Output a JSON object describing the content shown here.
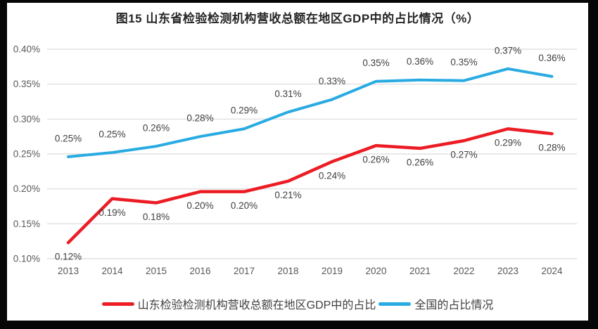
{
  "frame": {
    "border_color": "#060606",
    "background_color": "#ffffff"
  },
  "chart_data": {
    "type": "line",
    "title": "图15  山东省检验检测机构营收总额在地区GDP中的占比情况（%）",
    "title_color": "#262626",
    "categories": [
      "2013",
      "2014",
      "2015",
      "2016",
      "2017",
      "2018",
      "2019",
      "2020",
      "2021",
      "2022",
      "2023",
      "2024"
    ],
    "y_ticks": [
      "0.40%",
      "0.35%",
      "0.30%",
      "0.25%",
      "0.20%",
      "0.15%",
      "0.10%"
    ],
    "ylim": [
      0.1,
      0.4
    ],
    "grid": true,
    "gridline_color": "#D9D9D9",
    "tick_color": "#595959",
    "legend_position": "bottom",
    "series": [
      {
        "name": "山东检验检测机构营收总额在地区GDP中的占比",
        "color": "#EC1C24",
        "stroke_width": 4.5,
        "label_side": "below",
        "values": [
          0.123,
          0.186,
          0.18,
          0.196,
          0.196,
          0.211,
          0.239,
          0.262,
          0.258,
          0.269,
          0.286,
          0.279
        ],
        "labels": [
          "0.12%",
          "0.19%",
          "0.18%",
          "0.20%",
          "0.20%",
          "0.21%",
          "0.24%",
          "0.26%",
          "0.26%",
          "0.27%",
          "0.29%",
          "0.28%"
        ]
      },
      {
        "name": "全国的占比情况",
        "color": "#29ABE2",
        "stroke_width": 4,
        "label_side": "above",
        "values": [
          0.246,
          0.252,
          0.261,
          0.275,
          0.286,
          0.31,
          0.328,
          0.354,
          0.356,
          0.355,
          0.372,
          0.361
        ],
        "labels": [
          "0.25%",
          "0.25%",
          "0.26%",
          "0.28%",
          "0.29%",
          "0.31%",
          "0.33%",
          "0.35%",
          "0.36%",
          "0.35%",
          "0.37%",
          "0.36%"
        ]
      }
    ]
  }
}
